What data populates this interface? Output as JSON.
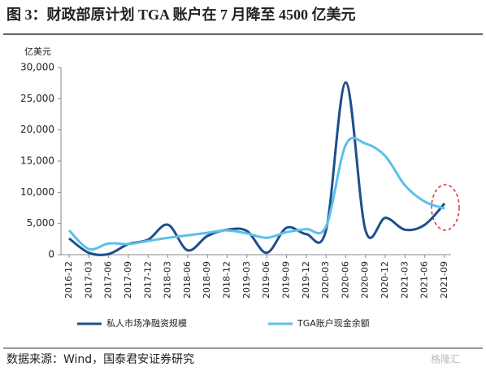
{
  "chart_data": {
    "type": "line",
    "title": "图 3：财政部原计划 TGA 账户在 7 月降至 4500 亿美元",
    "y_axis_label": "亿美元",
    "categories": [
      "2016-12",
      "2017-03",
      "2017-06",
      "2017-09",
      "2017-12",
      "2018-03",
      "2018-06",
      "2018-09",
      "2018-12",
      "2019-03",
      "2019-06",
      "2019-09",
      "2019-12",
      "2020-03",
      "2020-06",
      "2020-09",
      "2020-12",
      "2021-03",
      "2021-06",
      "2021-09"
    ],
    "series": [
      {
        "name": "私人市场净融资规模",
        "color": "#1f4e8c",
        "values": [
          2600,
          300,
          100,
          1700,
          2400,
          4800,
          700,
          3000,
          4000,
          3800,
          300,
          4300,
          3300,
          3900,
          27600,
          3900,
          5900,
          4000,
          4800,
          8200
        ]
      },
      {
        "name": "TGA账户现金余额",
        "color": "#5bc0eb",
        "values": [
          3900,
          900,
          1800,
          1700,
          2200,
          2700,
          3100,
          3500,
          3900,
          3400,
          2700,
          3600,
          4100,
          4500,
          17600,
          17800,
          15800,
          11100,
          8500,
          7400
        ]
      }
    ],
    "ylim": [
      0,
      30000
    ],
    "yticks": [
      0,
      {
        "value": 5000,
        "label": "5,000"
      },
      {
        "value": 10000,
        "label": "10,000"
      },
      {
        "value": 15000,
        "label": "15,000"
      },
      {
        "value": 20000,
        "label": "20,000"
      },
      {
        "value": 25000,
        "label": "25,000"
      },
      {
        "value": 30000,
        "label": "30,000"
      }
    ],
    "legend": "bottom",
    "source": "数据来源：Wind，国泰君安证券研究",
    "watermark": "格隆汇"
  }
}
